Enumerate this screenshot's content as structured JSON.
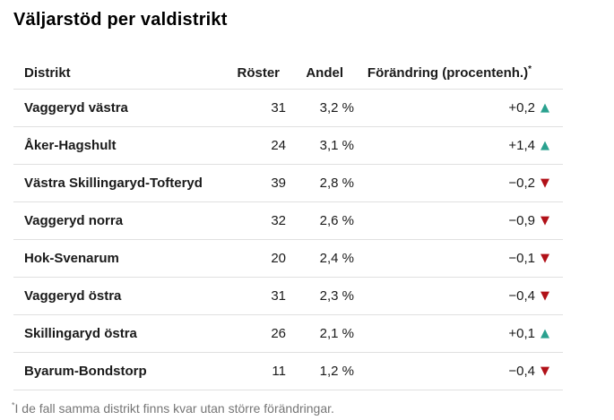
{
  "title": "Väljarstöd per valdistrikt",
  "chart_data": {
    "type": "table",
    "title": "Väljarstöd per valdistrikt",
    "columns": [
      "Distrikt",
      "Röster",
      "Andel",
      "Förändring (procentenh.)"
    ],
    "header_note_symbol": "*",
    "rows": [
      {
        "district": "Vaggeryd västra",
        "votes": "31",
        "share": "3,2 %",
        "change": "+0,2",
        "direction": "up"
      },
      {
        "district": "Åker-Hagshult",
        "votes": "24",
        "share": "3,1 %",
        "change": "+1,4",
        "direction": "up"
      },
      {
        "district": "Västra Skillingaryd-Tofteryd",
        "votes": "39",
        "share": "2,8 %",
        "change": "−0,2",
        "direction": "down"
      },
      {
        "district": "Vaggeryd norra",
        "votes": "32",
        "share": "2,6 %",
        "change": "−0,9",
        "direction": "down"
      },
      {
        "district": "Hok-Svenarum",
        "votes": "20",
        "share": "2,4 %",
        "change": "−0,1",
        "direction": "down"
      },
      {
        "district": "Vaggeryd östra",
        "votes": "31",
        "share": "2,3 %",
        "change": "−0,4",
        "direction": "down"
      },
      {
        "district": "Skillingaryd östra",
        "votes": "26",
        "share": "2,1 %",
        "change": "+0,1",
        "direction": "up"
      },
      {
        "district": "Byarum-Bondstorp",
        "votes": "11",
        "share": "1,2 %",
        "change": "−0,4",
        "direction": "down"
      }
    ]
  },
  "icons": {
    "up": "▲",
    "down": "▼"
  },
  "footnote": {
    "symbol": "*",
    "text": "I de fall samma distrikt finns kvar utan större förändringar."
  },
  "colors": {
    "up": "#2aa18f",
    "down": "#b11118",
    "divider": "#e0e0e0",
    "footnote": "#757575"
  }
}
